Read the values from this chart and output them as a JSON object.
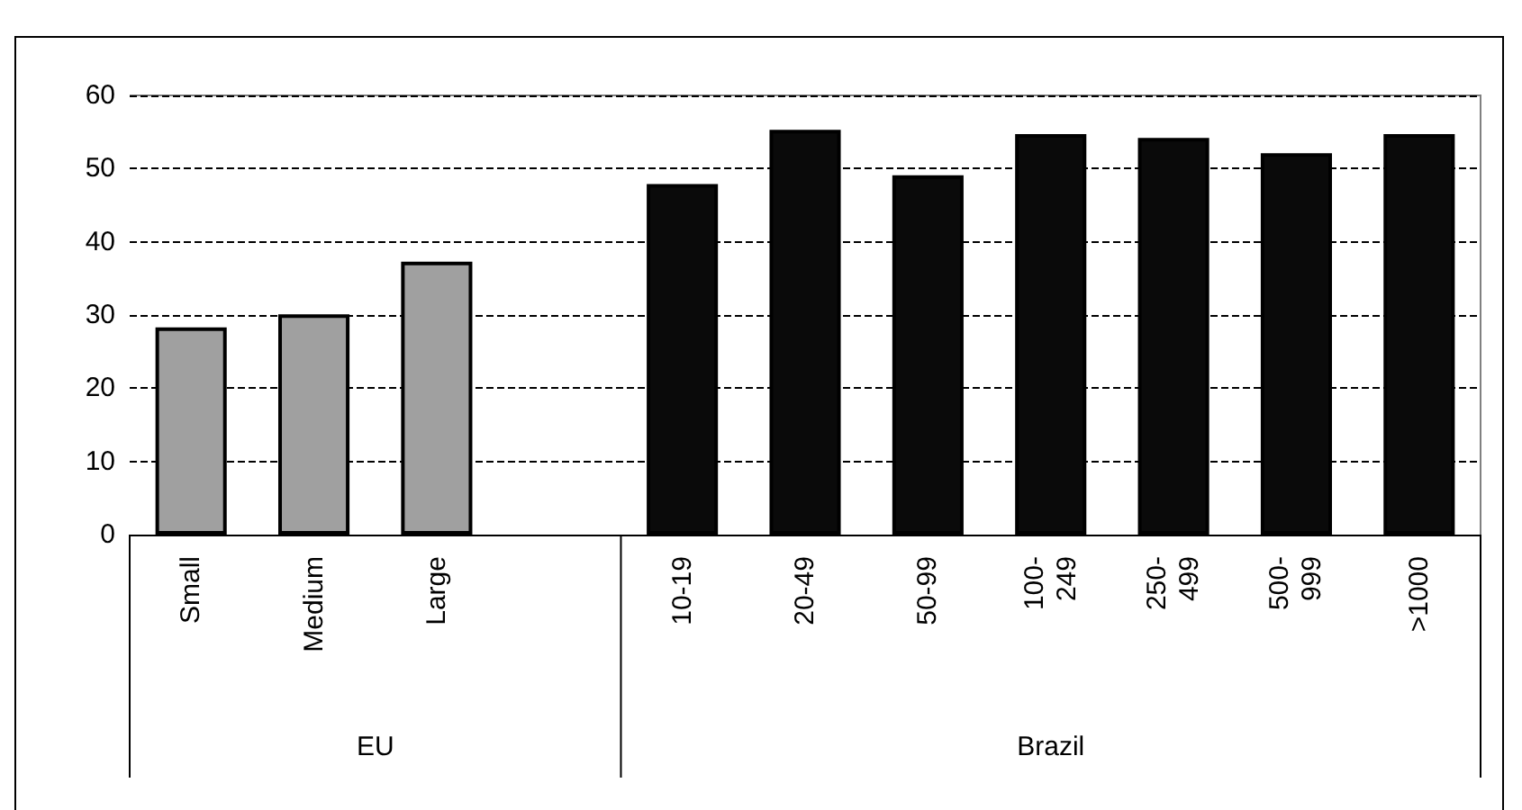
{
  "chart_data": {
    "type": "bar",
    "categories": [
      "Small",
      "Medium",
      "Large",
      null,
      "10-19",
      "20-49",
      "50-99",
      "100-\n249",
      "250-\n499",
      "500-\n999",
      ">1000"
    ],
    "values": [
      28.3,
      30.1,
      37.3,
      null,
      47.9,
      55.3,
      49.1,
      54.7,
      54.2,
      52.1,
      54.7
    ],
    "colors": [
      "#a0a0a0",
      "#a0a0a0",
      "#a0a0a0",
      null,
      "#0a0a0a",
      "#0a0a0a",
      "#0a0a0a",
      "#0a0a0a",
      "#0a0a0a",
      "#0a0a0a",
      "#0a0a0a"
    ],
    "ylim": [
      0,
      60
    ],
    "yticks": [
      0,
      10,
      20,
      30,
      40,
      50,
      60
    ],
    "grid": "y",
    "line_style": "dashed",
    "annotations": [
      "EU",
      "Brazil"
    ]
  }
}
